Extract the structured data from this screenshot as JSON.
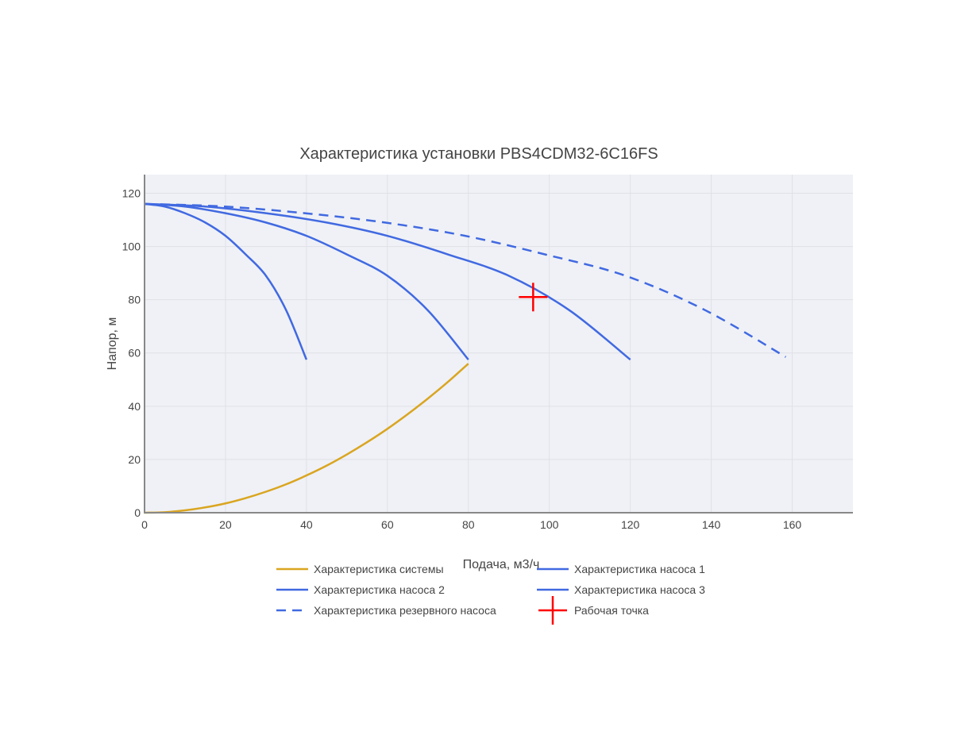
{
  "chart_data": {
    "type": "line",
    "title": "Характеристика установки PBS4CDM32-6C16FS",
    "xlabel": "Подача, м3/ч",
    "ylabel": "Напор, м",
    "xlim": [
      0,
      175
    ],
    "ylim": [
      0,
      127
    ],
    "xticks": [
      0,
      20,
      40,
      60,
      80,
      100,
      120,
      140,
      160
    ],
    "yticks": [
      0,
      20,
      40,
      60,
      80,
      100,
      120
    ],
    "grid": true,
    "legend_placement": "bottom",
    "background": "#eff1f6",
    "series": [
      {
        "name": "Характеристика системы",
        "color": "#daa520",
        "dash": "solid",
        "x": [
          0,
          5,
          10,
          15,
          20,
          25,
          30,
          35,
          40,
          45,
          50,
          55,
          60,
          65,
          70,
          75,
          80
        ],
        "y": [
          0,
          0.2,
          0.9,
          2,
          3.5,
          5.5,
          7.9,
          10.7,
          14,
          17.7,
          21.9,
          26.5,
          31.5,
          37,
          42.9,
          49.2,
          56
        ]
      },
      {
        "name": "Характеристика насоса 1",
        "color": "#4169e1",
        "dash": "solid",
        "x": [
          0,
          5,
          10,
          15,
          20,
          25,
          30,
          35,
          40
        ],
        "y": [
          116,
          115,
          112.5,
          109,
          104,
          97,
          89,
          76,
          57.5
        ]
      },
      {
        "name": "Характеристика насоса 2",
        "color": "#4169e1",
        "dash": "solid",
        "x": [
          0,
          10,
          20,
          30,
          40,
          50,
          60,
          70,
          80
        ],
        "y": [
          116,
          115,
          112.5,
          109,
          104,
          97,
          89,
          76,
          57.5
        ]
      },
      {
        "name": "Характеристика насоса 3",
        "color": "#4169e1",
        "dash": "solid",
        "x": [
          0,
          15,
          30,
          45,
          60,
          75,
          90,
          105,
          120
        ],
        "y": [
          116,
          115,
          112.5,
          109,
          104,
          97,
          89,
          76,
          57.5
        ]
      },
      {
        "name": "Характеристика резервного насоса",
        "color": "#4169e1",
        "dash": "dash",
        "x": [
          0,
          19.8,
          39.6,
          59.4,
          79.2,
          99,
          118.8,
          138.6,
          158.4
        ],
        "y": [
          116,
          115,
          112.5,
          109,
          104,
          97,
          89,
          76,
          58.5
        ]
      },
      {
        "name": "Рабочая точка",
        "color": "#ff0000",
        "marker": "cross",
        "x": [
          96
        ],
        "y": [
          81
        ]
      }
    ]
  }
}
